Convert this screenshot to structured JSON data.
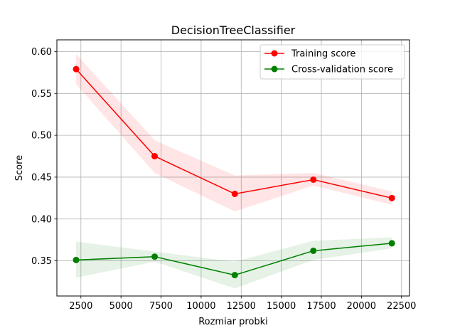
{
  "chart_data": {
    "type": "line",
    "title": "DecisionTreeClassifier",
    "xlabel": "Rozmiar probki",
    "ylabel": "Score",
    "xlim": [
      1000,
      23000
    ],
    "ylim": [
      0.308,
      0.614
    ],
    "grid": true,
    "legend_position": "top-right",
    "x_ticks": [
      2500,
      5000,
      7500,
      10000,
      12500,
      15000,
      17500,
      20000,
      22500
    ],
    "y_ticks": [
      0.35,
      0.4,
      0.45,
      0.5,
      0.55,
      0.6
    ],
    "y_tick_labels": [
      "0.35",
      "0.40",
      "0.45",
      "0.50",
      "0.55",
      "0.60"
    ],
    "x": [
      2200,
      7100,
      12100,
      17000,
      21900
    ],
    "series": [
      {
        "name": "Training score",
        "color": "#ff0000",
        "band_color": "#ff0000",
        "values": [
          0.579,
          0.475,
          0.43,
          0.447,
          0.425
        ],
        "lower": [
          0.561,
          0.455,
          0.409,
          0.44,
          0.417
        ],
        "upper": [
          0.597,
          0.494,
          0.452,
          0.455,
          0.433
        ]
      },
      {
        "name": "Cross-validation score",
        "color": "#008000",
        "band_color": "#008000",
        "values": [
          0.351,
          0.355,
          0.333,
          0.362,
          0.371
        ],
        "lower": [
          0.33,
          0.349,
          0.317,
          0.351,
          0.365
        ],
        "upper": [
          0.373,
          0.361,
          0.349,
          0.374,
          0.378
        ]
      }
    ]
  }
}
